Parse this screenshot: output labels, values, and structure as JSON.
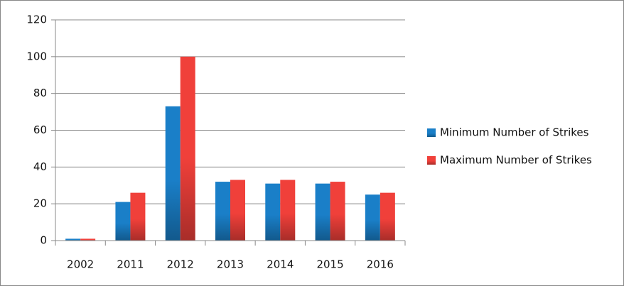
{
  "chart_data": {
    "type": "bar",
    "categories": [
      "2002",
      "2011",
      "2012",
      "2013",
      "2014",
      "2015",
      "2016"
    ],
    "series": [
      {
        "name": "Minimum Number of Strikes",
        "color": "#1a7fc8",
        "values": [
          1,
          21,
          73,
          32,
          31,
          31,
          25
        ]
      },
      {
        "name": "Maximum Number of Strikes",
        "color": "#f0403a",
        "values": [
          1,
          26,
          100,
          33,
          33,
          32,
          26
        ]
      }
    ],
    "ylim": [
      0,
      120
    ],
    "yticks": [
      0,
      20,
      40,
      60,
      80,
      100,
      120
    ],
    "grid": true,
    "legend": "right"
  }
}
